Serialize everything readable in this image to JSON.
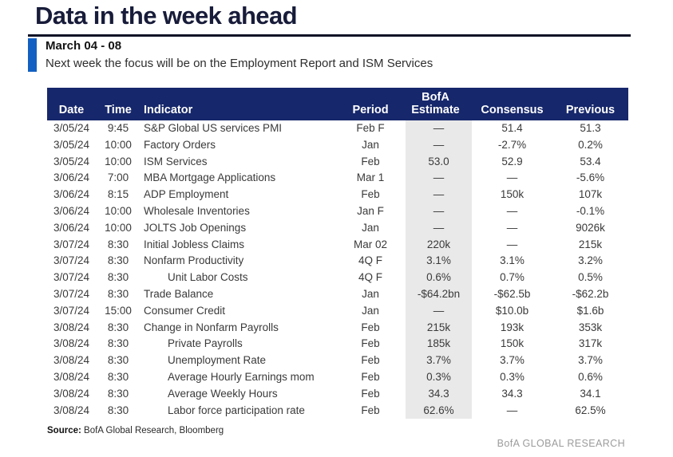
{
  "page": {
    "title": "Data in the week ahead",
    "brand_watermark": "BofA GLOBAL RESEARCH"
  },
  "callout": {
    "date_range": "March 04 - 08",
    "description": "Next week the focus will be on the Employment Report and ISM Services"
  },
  "table": {
    "headers": {
      "date": "Date",
      "time": "Time",
      "indicator": "Indicator",
      "period": "Period",
      "estimate_line1": "BofA",
      "estimate_line2": "Estimate",
      "consensus": "Consensus",
      "previous": "Previous"
    },
    "rows": [
      {
        "date": "3/05/24",
        "time": "9:45",
        "indicator": "S&P Global US services PMI",
        "period": "Feb F",
        "estimate": "—",
        "consensus": "51.4",
        "previous": "51.3",
        "indent": false
      },
      {
        "date": "3/05/24",
        "time": "10:00",
        "indicator": "Factory Orders",
        "period": "Jan",
        "estimate": "—",
        "consensus": "-2.7%",
        "previous": "0.2%",
        "indent": false
      },
      {
        "date": "3/05/24",
        "time": "10:00",
        "indicator": "ISM Services",
        "period": "Feb",
        "estimate": "53.0",
        "consensus": "52.9",
        "previous": "53.4",
        "indent": false
      },
      {
        "date": "3/06/24",
        "time": "7:00",
        "indicator": "MBA Mortgage Applications",
        "period": "Mar 1",
        "estimate": "—",
        "consensus": "—",
        "previous": "-5.6%",
        "indent": false
      },
      {
        "date": "3/06/24",
        "time": "8:15",
        "indicator": "ADP Employment",
        "period": "Feb",
        "estimate": "—",
        "consensus": "150k",
        "previous": "107k",
        "indent": false
      },
      {
        "date": "3/06/24",
        "time": "10:00",
        "indicator": "Wholesale Inventories",
        "period": "Jan F",
        "estimate": "—",
        "consensus": "—",
        "previous": "-0.1%",
        "indent": false
      },
      {
        "date": "3/06/24",
        "time": "10:00",
        "indicator": "JOLTS Job Openings",
        "period": "Jan",
        "estimate": "—",
        "consensus": "—",
        "previous": "9026k",
        "indent": false
      },
      {
        "date": "3/07/24",
        "time": "8:30",
        "indicator": "Initial Jobless Claims",
        "period": "Mar 02",
        "estimate": "220k",
        "consensus": "—",
        "previous": "215k",
        "indent": false
      },
      {
        "date": "3/07/24",
        "time": "8:30",
        "indicator": "Nonfarm Productivity",
        "period": "4Q F",
        "estimate": "3.1%",
        "consensus": "3.1%",
        "previous": "3.2%",
        "indent": false
      },
      {
        "date": "3/07/24",
        "time": "8:30",
        "indicator": "Unit Labor Costs",
        "period": "4Q F",
        "estimate": "0.6%",
        "consensus": "0.7%",
        "previous": "0.5%",
        "indent": true
      },
      {
        "date": "3/07/24",
        "time": "8:30",
        "indicator": "Trade Balance",
        "period": "Jan",
        "estimate": "-$64.2bn",
        "consensus": "-$62.5b",
        "previous": "-$62.2b",
        "indent": false
      },
      {
        "date": "3/07/24",
        "time": "15:00",
        "indicator": "Consumer Credit",
        "period": "Jan",
        "estimate": "—",
        "consensus": "$10.0b",
        "previous": "$1.6b",
        "indent": false
      },
      {
        "date": "3/08/24",
        "time": "8:30",
        "indicator": "Change in Nonfarm Payrolls",
        "period": "Feb",
        "estimate": "215k",
        "consensus": "193k",
        "previous": "353k",
        "indent": false
      },
      {
        "date": "3/08/24",
        "time": "8:30",
        "indicator": "Private Payrolls",
        "period": "Feb",
        "estimate": "185k",
        "consensus": "150k",
        "previous": "317k",
        "indent": true
      },
      {
        "date": "3/08/24",
        "time": "8:30",
        "indicator": "Unemployment Rate",
        "period": "Feb",
        "estimate": "3.7%",
        "consensus": "3.7%",
        "previous": "3.7%",
        "indent": true
      },
      {
        "date": "3/08/24",
        "time": "8:30",
        "indicator": "Average Hourly Earnings mom",
        "period": "Feb",
        "estimate": "0.3%",
        "consensus": "0.3%",
        "previous": "0.6%",
        "indent": true
      },
      {
        "date": "3/08/24",
        "time": "8:30",
        "indicator": "Average Weekly Hours",
        "period": "Feb",
        "estimate": "34.3",
        "consensus": "34.3",
        "previous": "34.1",
        "indent": true
      },
      {
        "date": "3/08/24",
        "time": "8:30",
        "indicator": "Labor force participation rate",
        "period": "Feb",
        "estimate": "62.6%",
        "consensus": "—",
        "previous": "62.5%",
        "indent": true
      }
    ]
  },
  "footer": {
    "source_label": "Source:",
    "source_text": " BofA Global Research, Bloomberg"
  },
  "colors": {
    "header_navy": "#16276b",
    "accent_blue": "#1260c2",
    "estimate_column_bg": "#e9e9e9",
    "title_text": "#181c3a",
    "watermark_gray": "#9c9c9c"
  }
}
